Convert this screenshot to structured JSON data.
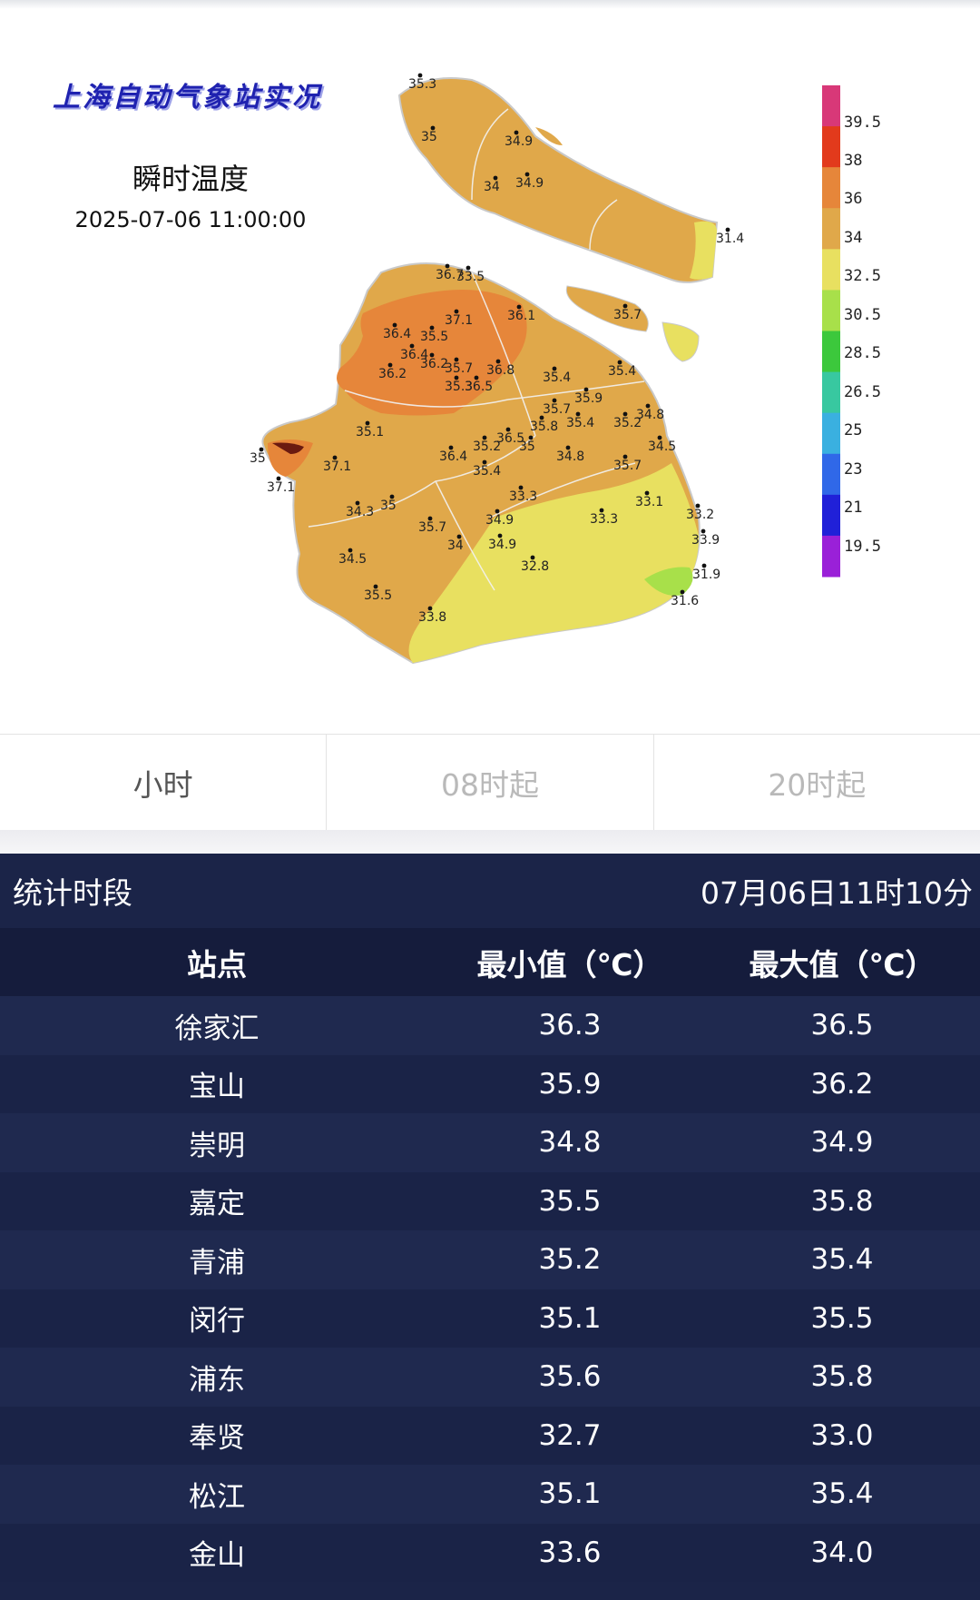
{
  "map": {
    "heading": "上海自动气象站实况",
    "subtitle": "瞬时温度",
    "datetime": "2025-07-06 11:00:00",
    "legend": [
      {
        "label": "39.5",
        "color": "#d83878"
      },
      {
        "label": "38",
        "color": "#e23a1c"
      },
      {
        "label": "36",
        "color": "#e6863a"
      },
      {
        "label": "34",
        "color": "#e0a84a"
      },
      {
        "label": "32.5",
        "color": "#e8e060"
      },
      {
        "label": "30.5",
        "color": "#a8e04a"
      },
      {
        "label": "28.5",
        "color": "#3cc83c"
      },
      {
        "label": "26.5",
        "color": "#38c8a0"
      },
      {
        "label": "25",
        "color": "#3ab0e0"
      },
      {
        "label": "23",
        "color": "#3068e8"
      },
      {
        "label": "21",
        "color": "#2020d8"
      },
      {
        "label": "19.5",
        "color": "#9a20d8"
      }
    ],
    "stations": [
      "35.3",
      "35",
      "34.9",
      "34",
      "34.9",
      "31.4",
      "36.7",
      "33.5",
      "37.1",
      "36.1",
      "36.4",
      "35.5",
      "36.4",
      "36.2",
      "35.7",
      "36.8",
      "36.2",
      "35.3",
      "36.5",
      "35.7",
      "35.4",
      "35.4",
      "35.9",
      "35.7",
      "34.8",
      "35.8",
      "35.4",
      "35.2",
      "34.5",
      "35.1",
      "35.2",
      "36.5",
      "35",
      "36.4",
      "34.8",
      "35.7",
      "37.1",
      "35.4",
      "35",
      "37.1",
      "33.3",
      "33.1",
      "33.2",
      "34.3",
      "35",
      "33.3",
      "35.7",
      "34.9",
      "33.9",
      "34",
      "34.9",
      "32.8",
      "31.9",
      "34.5",
      "31.6",
      "35.5",
      "33.8"
    ]
  },
  "tabs": [
    "小时",
    "08时起",
    "20时起"
  ],
  "stats": {
    "title": "统计时段",
    "time": "07月06日11时10分",
    "columns": [
      "站点",
      "最小值（℃）",
      "最大值（℃）"
    ],
    "rows": [
      {
        "station": "徐家汇",
        "min": "36.3",
        "max": "36.5"
      },
      {
        "station": "宝山",
        "min": "35.9",
        "max": "36.2"
      },
      {
        "station": "崇明",
        "min": "34.8",
        "max": "34.9"
      },
      {
        "station": "嘉定",
        "min": "35.5",
        "max": "35.8"
      },
      {
        "station": "青浦",
        "min": "35.2",
        "max": "35.4"
      },
      {
        "station": "闵行",
        "min": "35.1",
        "max": "35.5"
      },
      {
        "station": "浦东",
        "min": "35.6",
        "max": "35.8"
      },
      {
        "station": "奉贤",
        "min": "32.7",
        "max": "33.0"
      },
      {
        "station": "松江",
        "min": "35.1",
        "max": "35.4"
      },
      {
        "station": "金山",
        "min": "33.6",
        "max": "34.0"
      }
    ]
  },
  "colors": {
    "panel_bg": "#1b2448",
    "header_bg": "#151c3c",
    "base_land": "#e0a84a",
    "hot_land": "#e6863a",
    "cool_land": "#e8e060",
    "cold_land": "#a8e04a"
  }
}
